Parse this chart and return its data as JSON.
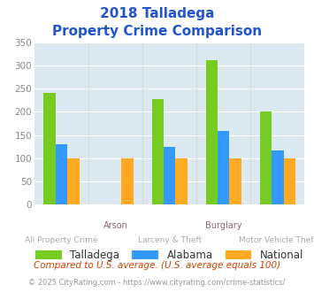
{
  "title_line1": "2018 Talladega",
  "title_line2": "Property Crime Comparison",
  "top_labels": [
    "",
    "Arson",
    "",
    "Burglary",
    ""
  ],
  "bottom_labels": [
    "All Property Crime",
    "",
    "Larceny & Theft",
    "",
    "Motor Vehicle Theft"
  ],
  "series_names": [
    "Talladega",
    "Alabama",
    "National"
  ],
  "values": {
    "Talladega": [
      240,
      0,
      228,
      312,
      201
    ],
    "Alabama": [
      130,
      0,
      124,
      158,
      116
    ],
    "National": [
      100,
      100,
      100,
      100,
      100
    ]
  },
  "colors": {
    "Talladega": "#77cc22",
    "Alabama": "#3399ff",
    "National": "#ffaa22"
  },
  "ylim": [
    0,
    350
  ],
  "yticks": [
    0,
    50,
    100,
    150,
    200,
    250,
    300,
    350
  ],
  "bar_width": 0.22,
  "n_groups": 5,
  "chart_bg": "#dde9f0",
  "title_color": "#2255cc",
  "top_label_color": "#886677",
  "bottom_label_color": "#aaaaaa",
  "legend_label_color": "#333333",
  "footnote1": "Compared to U.S. average. (U.S. average equals 100)",
  "footnote2": "© 2025 CityRating.com - https://www.cityrating.com/crime-statistics/",
  "footnote1_color": "#cc4400",
  "footnote2_color": "#999999",
  "grid_color": "#ffffff",
  "vgrid_color": "#ccdddd"
}
